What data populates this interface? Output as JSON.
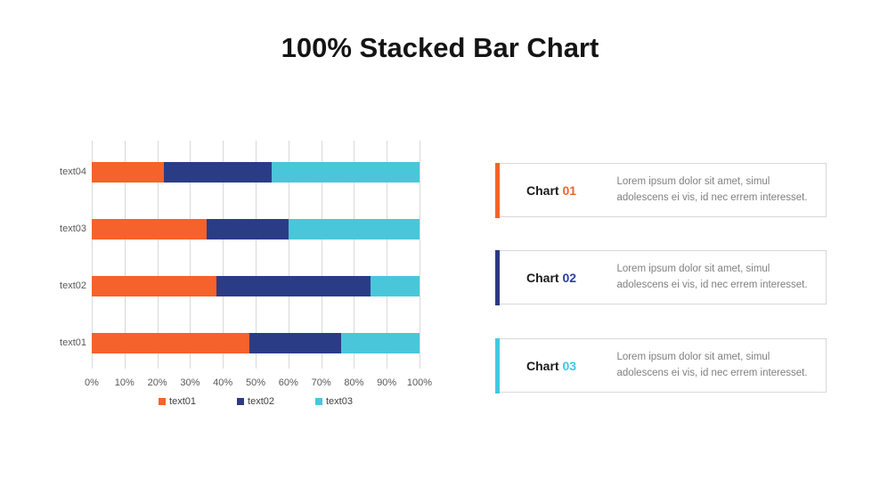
{
  "title": "100% Stacked Bar Chart",
  "colors": {
    "orange": "#F5622B",
    "navy": "#2B3C87",
    "cyan": "#4AC6DB",
    "grid": "#D9D9D9",
    "axis_text": "#595959",
    "card_border": "#D8D8D8",
    "card_body_text": "#808080"
  },
  "chart_data": {
    "type": "bar",
    "orientation": "horizontal",
    "stacked": "100%",
    "title": "",
    "xlabel": "",
    "ylabel": "",
    "xlim": [
      0,
      100
    ],
    "grid": "vertical",
    "legend_position": "bottom",
    "categories": [
      "text04",
      "text03",
      "text02",
      "text01"
    ],
    "series": [
      {
        "name": "text01",
        "color": "#F5622B",
        "values": [
          22,
          35,
          38,
          48
        ]
      },
      {
        "name": "text02",
        "color": "#2B3C87",
        "values": [
          33,
          25,
          47,
          28
        ]
      },
      {
        "name": "text03",
        "color": "#4AC6DB",
        "values": [
          45,
          40,
          15,
          24
        ]
      }
    ],
    "x_ticks": [
      "0%",
      "10%",
      "20%",
      "30%",
      "40%",
      "50%",
      "60%",
      "70%",
      "80%",
      "90%",
      "100%"
    ]
  },
  "cards": [
    {
      "title_prefix": "Chart",
      "number": "01",
      "accent": "#F5622B",
      "number_color": "#F5622B",
      "body": "Lorem ipsum dolor sit amet, simul adolescens ei vis, id nec errem interesset."
    },
    {
      "title_prefix": "Chart",
      "number": "02",
      "accent": "#2B3984",
      "number_color": "#2B3F9E",
      "body": "Lorem ipsum dolor sit amet, simul adolescens ei vis, id nec errem interesset."
    },
    {
      "title_prefix": "Chart",
      "number": "03",
      "accent": "#44C8E1",
      "number_color": "#3EC6E8",
      "body": "Lorem ipsum dolor sit amet, simul adolescens ei vis, id nec errem interesset."
    }
  ]
}
